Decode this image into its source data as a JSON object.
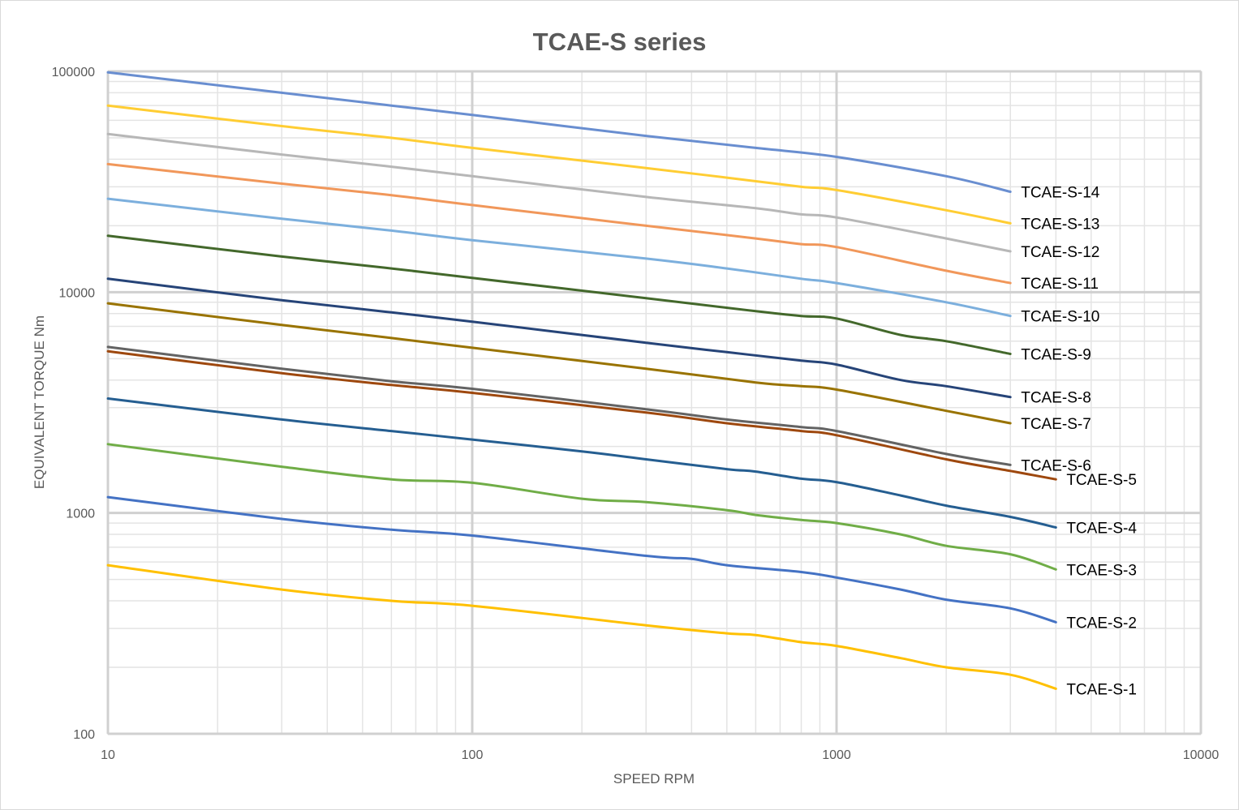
{
  "chart_data": {
    "type": "line",
    "title": "TCAE-S series",
    "xlabel": "SPEED RPM",
    "ylabel": "EQUIVALENT TORQUE Nm",
    "xscale": "log",
    "yscale": "log",
    "xlim": [
      10,
      10000
    ],
    "ylim": [
      100,
      100000
    ],
    "x_ticks": [
      "10",
      "100",
      "1000",
      "10000"
    ],
    "y_ticks": [
      "100",
      "1000",
      "10000",
      "100000"
    ],
    "grid": true,
    "legend": "labels at line ends",
    "series": [
      {
        "name": "TCAE-S-1",
        "color": "#FFC000",
        "x": [
          10,
          30,
          60,
          100,
          300,
          500,
          600,
          800,
          1000,
          1500,
          2000,
          3000,
          4000
        ],
        "y": [
          580,
          450,
          400,
          380,
          310,
          285,
          280,
          260,
          250,
          220,
          200,
          185,
          160
        ]
      },
      {
        "name": "TCAE-S-2",
        "color": "#4472C4",
        "x": [
          10,
          30,
          60,
          100,
          300,
          400,
          500,
          800,
          1000,
          1500,
          2000,
          3000,
          4000
        ],
        "y": [
          1180,
          940,
          840,
          790,
          640,
          620,
          580,
          540,
          510,
          450,
          405,
          370,
          320
        ]
      },
      {
        "name": "TCAE-S-3",
        "color": "#70AD47",
        "x": [
          10,
          30,
          60,
          100,
          200,
          300,
          500,
          600,
          800,
          1000,
          1500,
          2000,
          3000,
          4000
        ],
        "y": [
          2050,
          1620,
          1420,
          1370,
          1160,
          1120,
          1030,
          980,
          930,
          900,
          800,
          710,
          650,
          555
        ]
      },
      {
        "name": "TCAE-S-4",
        "color": "#255E91",
        "x": [
          10,
          30,
          60,
          100,
          200,
          300,
          500,
          600,
          800,
          1000,
          1500,
          2000,
          3000,
          4000
        ],
        "y": [
          3300,
          2650,
          2350,
          2150,
          1900,
          1750,
          1580,
          1540,
          1430,
          1380,
          1200,
          1080,
          960,
          860
        ]
      },
      {
        "name": "TCAE-S-5",
        "color": "#9E480E",
        "x": [
          10,
          30,
          60,
          100,
          300,
          500,
          800,
          1000,
          2000,
          3000,
          4000
        ],
        "y": [
          5400,
          4300,
          3800,
          3500,
          2850,
          2550,
          2350,
          2250,
          1750,
          1550,
          1420
        ]
      },
      {
        "name": "TCAE-S-6",
        "color": "#636363",
        "x": [
          10,
          30,
          60,
          100,
          300,
          500,
          800,
          1000,
          2000,
          3000
        ],
        "y": [
          5650,
          4500,
          3950,
          3650,
          2950,
          2650,
          2450,
          2350,
          1850,
          1650
        ]
      },
      {
        "name": "TCAE-S-7",
        "color": "#997300",
        "x": [
          10,
          30,
          60,
          100,
          300,
          600,
          800,
          1000,
          2000,
          3000
        ],
        "y": [
          8900,
          7100,
          6200,
          5600,
          4500,
          3900,
          3750,
          3620,
          2900,
          2550
        ]
      },
      {
        "name": "TCAE-S-8",
        "color": "#264478",
        "x": [
          10,
          30,
          60,
          100,
          300,
          500,
          800,
          1000,
          1500,
          2000,
          3000
        ],
        "y": [
          11500,
          9200,
          8100,
          7350,
          5900,
          5350,
          4900,
          4700,
          4000,
          3750,
          3350
        ]
      },
      {
        "name": "TCAE-S-9",
        "color": "#43682B",
        "x": [
          10,
          30,
          60,
          100,
          300,
          600,
          800,
          1000,
          1500,
          2000,
          3000
        ],
        "y": [
          18000,
          14500,
          12800,
          11600,
          9400,
          8200,
          7800,
          7600,
          6400,
          6000,
          5250
        ]
      },
      {
        "name": "TCAE-S-10",
        "color": "#7CAFDD",
        "x": [
          10,
          30,
          60,
          100,
          300,
          500,
          800,
          1000,
          2000,
          3000
        ],
        "y": [
          26500,
          21500,
          19000,
          17200,
          14200,
          12800,
          11500,
          11000,
          9000,
          7800
        ]
      },
      {
        "name": "TCAE-S-11",
        "color": "#F1975A",
        "x": [
          10,
          30,
          60,
          100,
          300,
          600,
          800,
          1000,
          2000,
          3000
        ],
        "y": [
          38000,
          31000,
          27500,
          24800,
          20000,
          17500,
          16500,
          16000,
          12500,
          11000
        ]
      },
      {
        "name": "TCAE-S-12",
        "color": "#B7B7B7",
        "x": [
          10,
          30,
          60,
          100,
          300,
          600,
          800,
          1000,
          2000,
          3000
        ],
        "y": [
          52000,
          42000,
          37000,
          33500,
          27000,
          24000,
          22500,
          21800,
          17500,
          15300
        ]
      },
      {
        "name": "TCAE-S-13",
        "color": "#FFCD33",
        "x": [
          10,
          30,
          60,
          100,
          300,
          500,
          800,
          1000,
          2000,
          3000
        ],
        "y": [
          70000,
          56500,
          50000,
          45000,
          36500,
          33000,
          30000,
          29000,
          23500,
          20500
        ]
      },
      {
        "name": "TCAE-S-14",
        "color": "#698ED0",
        "x": [
          10,
          30,
          60,
          100,
          300,
          600,
          1000,
          2000,
          3000
        ],
        "y": [
          99000,
          80000,
          70000,
          63500,
          51000,
          45000,
          41000,
          33500,
          28500
        ]
      }
    ]
  }
}
